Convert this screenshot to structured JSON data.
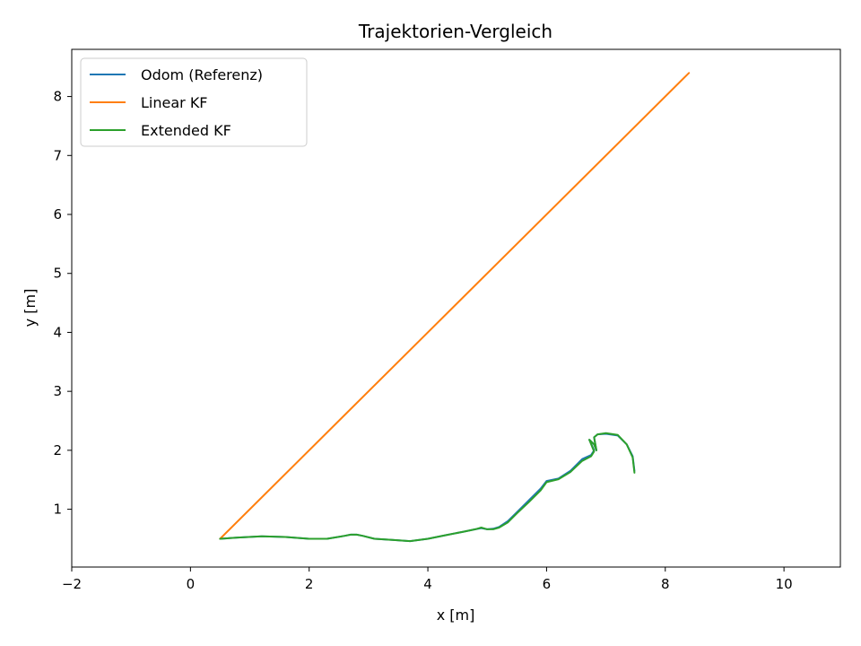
{
  "chart_data": {
    "type": "line",
    "title": "Trajektorien-Vergleich",
    "xlabel": "x [m]",
    "ylabel": "y [m]",
    "xlim": [
      -2.0,
      10.95
    ],
    "ylim": [
      0.02,
      8.8
    ],
    "xticks": [
      -2,
      0,
      2,
      4,
      6,
      8,
      10
    ],
    "yticks": [
      1,
      2,
      3,
      4,
      5,
      6,
      7,
      8
    ],
    "grid": false,
    "legend_position": "upper-left",
    "series": [
      {
        "name": "Odom (Referenz)",
        "color": "#1f77b4",
        "x": [
          0.5,
          0.8,
          1.2,
          1.6,
          2.0,
          2.3,
          2.6,
          2.7,
          2.8,
          2.9,
          3.1,
          3.4,
          3.7,
          4.0,
          4.3,
          4.6,
          4.8,
          4.9,
          5.0,
          5.1,
          5.2,
          5.35,
          5.5,
          5.7,
          5.9,
          6.0,
          6.2,
          6.4,
          6.6,
          6.75,
          6.8,
          6.72,
          6.8,
          6.84,
          6.8,
          6.86,
          7.0,
          7.2,
          7.35,
          7.45,
          7.48
        ],
        "y": [
          0.5,
          0.52,
          0.54,
          0.53,
          0.5,
          0.5,
          0.55,
          0.57,
          0.57,
          0.55,
          0.5,
          0.48,
          0.46,
          0.5,
          0.56,
          0.62,
          0.66,
          0.68,
          0.66,
          0.67,
          0.7,
          0.8,
          0.95,
          1.15,
          1.35,
          1.48,
          1.52,
          1.65,
          1.85,
          1.92,
          2.0,
          2.18,
          2.1,
          2.0,
          2.22,
          2.27,
          2.28,
          2.25,
          2.1,
          1.9,
          1.65
        ]
      },
      {
        "name": "Linear KF",
        "color": "#ff7f0e",
        "x": [
          0.5,
          8.4
        ],
        "y": [
          0.5,
          8.4
        ]
      },
      {
        "name": "Extended KF",
        "color": "#2ca02c",
        "x": [
          0.5,
          0.8,
          1.2,
          1.6,
          2.0,
          2.3,
          2.6,
          2.7,
          2.8,
          2.9,
          3.1,
          3.4,
          3.7,
          4.0,
          4.3,
          4.6,
          4.8,
          4.9,
          5.0,
          5.1,
          5.2,
          5.35,
          5.5,
          5.7,
          5.9,
          6.0,
          6.2,
          6.4,
          6.6,
          6.75,
          6.8,
          6.72,
          6.8,
          6.84,
          6.8,
          6.86,
          7.0,
          7.2,
          7.35,
          7.45,
          7.48
        ],
        "y": [
          0.5,
          0.52,
          0.54,
          0.53,
          0.5,
          0.5,
          0.55,
          0.57,
          0.57,
          0.55,
          0.5,
          0.48,
          0.46,
          0.5,
          0.56,
          0.62,
          0.66,
          0.69,
          0.66,
          0.66,
          0.69,
          0.78,
          0.93,
          1.12,
          1.32,
          1.46,
          1.51,
          1.63,
          1.82,
          1.9,
          1.98,
          2.18,
          2.1,
          2.0,
          2.22,
          2.27,
          2.29,
          2.26,
          2.1,
          1.88,
          1.62
        ]
      }
    ]
  }
}
